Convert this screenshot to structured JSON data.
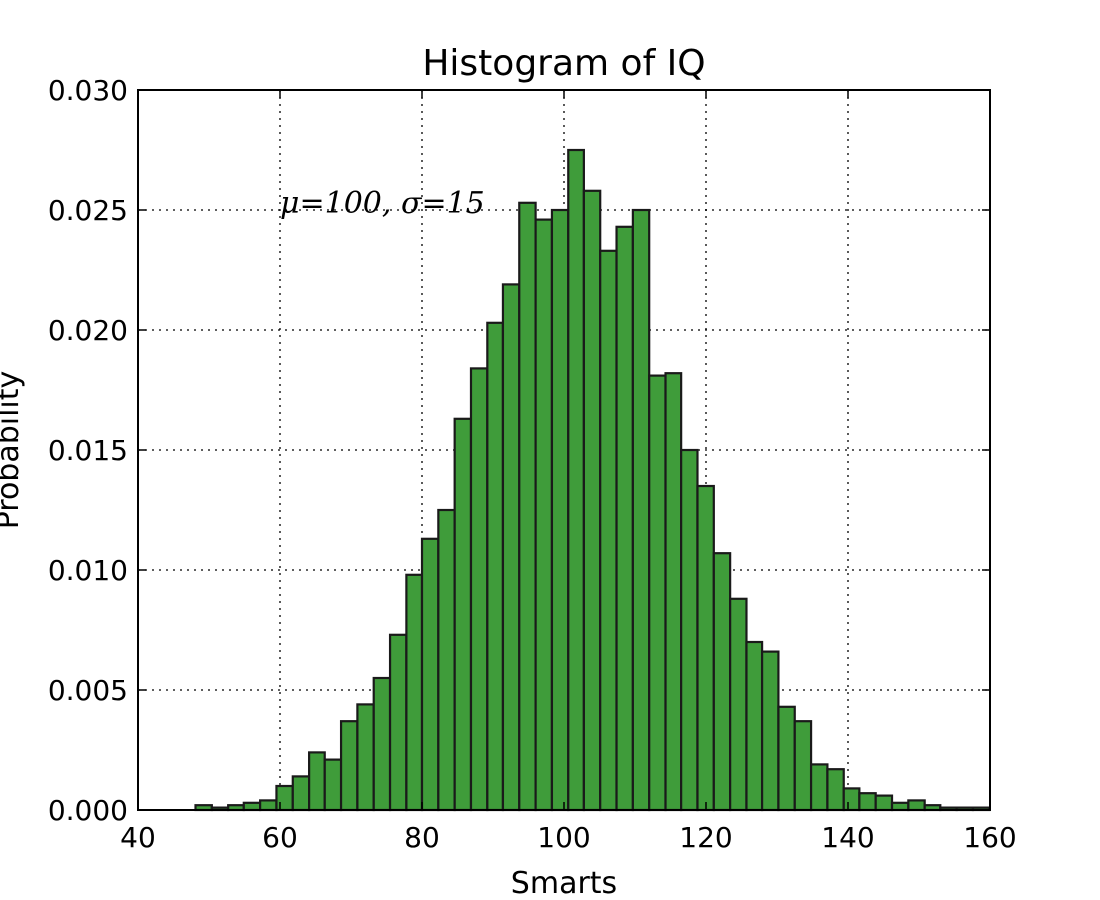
{
  "chart_data": {
    "type": "bar",
    "title": "Histogram of IQ",
    "xlabel": "Smarts",
    "ylabel": "Probability",
    "xlim": [
      40,
      160
    ],
    "ylim": [
      0,
      0.03
    ],
    "xticks": [
      "40",
      "60",
      "80",
      "100",
      "120",
      "140",
      "160"
    ],
    "yticks": [
      "0.000",
      "0.005",
      "0.010",
      "0.015",
      "0.020",
      "0.025",
      "0.030"
    ],
    "grid": true,
    "grid_style": "dotted",
    "annotation": {
      "text": "μ=100, σ=15",
      "x": 60,
      "y": 0.025
    },
    "bar_color": "#3f9c3a",
    "edge_color": "#1a1a1a",
    "bin_edges": [
      48.1,
      50.4,
      52.7,
      54.9,
      57.2,
      59.5,
      61.8,
      64.1,
      66.3,
      68.6,
      70.9,
      73.2,
      75.5,
      77.8,
      80.0,
      82.3,
      84.6,
      86.9,
      89.2,
      91.4,
      93.7,
      96.0,
      98.3,
      100.6,
      102.8,
      105.1,
      107.4,
      109.7,
      112.0,
      114.3,
      116.5,
      118.8,
      121.1,
      123.4,
      125.7,
      127.9,
      130.2,
      132.5,
      134.8,
      137.1,
      139.4,
      141.6,
      143.9,
      146.2,
      148.5,
      150.8,
      153.0,
      155.3,
      157.6,
      159.9
    ],
    "values": [
      0.0002,
      0.0001,
      0.0002,
      0.0003,
      0.0004,
      0.001,
      0.0014,
      0.0024,
      0.0021,
      0.0037,
      0.0044,
      0.0055,
      0.0073,
      0.0098,
      0.0113,
      0.0125,
      0.0163,
      0.0184,
      0.0203,
      0.0219,
      0.0253,
      0.0246,
      0.025,
      0.0275,
      0.0258,
      0.0233,
      0.0243,
      0.025,
      0.0181,
      0.0182,
      0.015,
      0.0135,
      0.0107,
      0.0088,
      0.007,
      0.0066,
      0.0043,
      0.0037,
      0.0019,
      0.0017,
      0.0009,
      0.0007,
      0.0006,
      0.0003,
      0.0004,
      0.0002,
      0.0001,
      0.0001,
      0.0001
    ]
  }
}
